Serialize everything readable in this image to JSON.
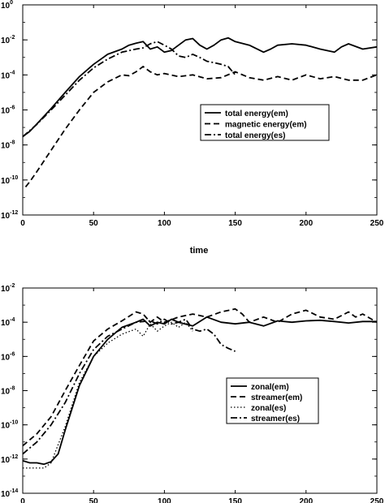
{
  "chart_data": [
    {
      "type": "line",
      "xlabel": "time",
      "yscale": "log",
      "xlim": [
        0,
        250
      ],
      "ylim": [
        1e-12,
        1
      ],
      "x_ticks": [
        "0",
        "50",
        "100",
        "150",
        "200",
        "250"
      ],
      "y_ticks": [
        {
          "value": 1.0,
          "base": "10",
          "exp": "0"
        },
        {
          "value": 0.01,
          "base": "10",
          "exp": "-2"
        },
        {
          "value": 0.0001,
          "base": "10",
          "exp": "-4"
        },
        {
          "value": 1e-06,
          "base": "10",
          "exp": "-6"
        },
        {
          "value": 1e-08,
          "base": "10",
          "exp": "-8"
        },
        {
          "value": 1e-10,
          "base": "10",
          "exp": "-10"
        },
        {
          "value": 1e-12,
          "base": "10",
          "exp": "-12"
        }
      ],
      "legend_position": "right",
      "series": [
        {
          "name": "total energy(em)",
          "style": "solid",
          "x": [
            0,
            5,
            10,
            20,
            30,
            40,
            50,
            60,
            70,
            75,
            80,
            85,
            90,
            95,
            100,
            105,
            110,
            115,
            120,
            125,
            130,
            135,
            140,
            145,
            150,
            160,
            170,
            175,
            180,
            190,
            200,
            210,
            220,
            225,
            230,
            240,
            250
          ],
          "y": [
            3e-08,
            6e-08,
            1.6e-07,
            1.2e-06,
            1e-05,
            8e-05,
            0.0004,
            0.0015,
            0.003,
            0.005,
            0.0065,
            0.008,
            0.003,
            0.004,
            0.002,
            0.0025,
            0.005,
            0.01,
            0.012,
            0.005,
            0.003,
            0.005,
            0.01,
            0.013,
            0.008,
            0.005,
            0.002,
            0.003,
            0.005,
            0.006,
            0.005,
            0.003,
            0.002,
            0.004,
            0.006,
            0.003,
            0.004
          ]
        },
        {
          "name": "magnetic energy(em)",
          "style": "dashed",
          "x": [
            2,
            5,
            10,
            20,
            30,
            40,
            50,
            60,
            70,
            75,
            80,
            85,
            90,
            95,
            100,
            110,
            120,
            130,
            140,
            150,
            160,
            170,
            180,
            190,
            200,
            210,
            220,
            230,
            240,
            250
          ],
          "y": [
            4e-11,
            8e-11,
            3e-10,
            5e-09,
            8e-08,
            1e-06,
            1e-05,
            4e-05,
            0.0001,
            9e-05,
            0.00015,
            0.0003,
            0.00015,
            0.0001,
            0.00012,
            8e-05,
            0.0001,
            6e-05,
            7e-05,
            0.00015,
            7e-05,
            5e-05,
            8e-05,
            5e-05,
            0.0001,
            6e-05,
            8e-05,
            5e-05,
            5e-05,
            0.0001
          ]
        },
        {
          "name": "total energy(es)",
          "style": "dashdot",
          "x": [
            0,
            10,
            20,
            30,
            40,
            50,
            60,
            70,
            80,
            85,
            90,
            95,
            100,
            105,
            110,
            115,
            120,
            125,
            130,
            135,
            140,
            145,
            150
          ],
          "y": [
            3e-08,
            1.5e-07,
            1e-06,
            7e-06,
            5e-05,
            0.00025,
            0.0008,
            0.002,
            0.003,
            0.0035,
            0.006,
            0.008,
            0.005,
            0.003,
            0.0012,
            0.001,
            0.0015,
            0.001,
            0.0006,
            0.0005,
            0.0004,
            0.0003,
            0.0001
          ]
        }
      ]
    },
    {
      "type": "line",
      "yscale": "log",
      "xlim": [
        0,
        250
      ],
      "ylim": [
        1e-14,
        0.01
      ],
      "x_ticks": [
        "0",
        "50",
        "100",
        "150",
        "200",
        "250"
      ],
      "y_ticks": [
        {
          "value": 0.01,
          "base": "10",
          "exp": "-2"
        },
        {
          "value": 0.0001,
          "base": "10",
          "exp": "-4"
        },
        {
          "value": 1e-06,
          "base": "10",
          "exp": "-6"
        },
        {
          "value": 1e-08,
          "base": "10",
          "exp": "-8"
        },
        {
          "value": 1e-10,
          "base": "10",
          "exp": "-10"
        },
        {
          "value": 1e-12,
          "base": "10",
          "exp": "-12"
        },
        {
          "value": 1e-14,
          "base": "10",
          "exp": "-14"
        }
      ],
      "legend_position": "bottom-right",
      "series": [
        {
          "name": "zonal(em)",
          "style": "solid",
          "x": [
            0,
            5,
            10,
            15,
            20,
            25,
            30,
            40,
            50,
            60,
            70,
            80,
            85,
            90,
            95,
            100,
            105,
            110,
            120,
            130,
            140,
            150,
            160,
            170,
            180,
            190,
            200,
            210,
            220,
            230,
            240,
            250
          ],
          "y": [
            8e-13,
            6e-13,
            6e-13,
            5e-13,
            7e-13,
            2e-12,
            5e-11,
            2e-08,
            1e-06,
            1e-05,
            5e-05,
            0.0001,
            0.00015,
            6e-05,
            0.0001,
            8e-05,
            0.00015,
            0.0001,
            6e-05,
            0.0002,
            0.0001,
            8e-05,
            0.0001,
            6e-05,
            0.00012,
            0.0001,
            0.00012,
            0.00013,
            0.00011,
            9e-05,
            0.00011,
            0.00011
          ]
        },
        {
          "name": "streamer(em)",
          "style": "dashed",
          "x": [
            0,
            10,
            20,
            30,
            40,
            50,
            60,
            70,
            80,
            85,
            90,
            95,
            100,
            110,
            120,
            130,
            140,
            150,
            155,
            160,
            170,
            180,
            190,
            200,
            210,
            220,
            230,
            235,
            240,
            250
          ],
          "y": [
            6e-12,
            3e-11,
            3e-10,
            1e-08,
            3e-07,
            8e-06,
            4e-05,
            0.00012,
            0.0004,
            0.0003,
            0.0001,
            0.0002,
            0.0001,
            0.0002,
            0.0003,
            0.0002,
            0.0004,
            0.0006,
            0.0003,
            0.0001,
            0.0002,
            0.0001,
            0.0003,
            0.0005,
            0.0002,
            0.00015,
            0.0004,
            0.0002,
            0.0003,
            0.0001
          ]
        },
        {
          "name": "zonal(es)",
          "style": "dotted",
          "x": [
            0,
            5,
            10,
            15,
            20,
            30,
            40,
            50,
            60,
            70,
            80,
            85,
            90,
            95,
            100,
            105,
            110,
            115,
            120
          ],
          "y": [
            3e-13,
            3e-13,
            3e-13,
            3e-13,
            6e-13,
            8e-11,
            3e-08,
            1e-06,
            6e-06,
            2e-05,
            4e-05,
            1.5e-05,
            8e-05,
            3e-05,
            6e-05,
            0.0001,
            5e-05,
            0.0001,
            3e-05
          ]
        },
        {
          "name": "streamer(es)",
          "style": "dashdot",
          "x": [
            0,
            10,
            20,
            30,
            40,
            50,
            60,
            70,
            80,
            90,
            95,
            100,
            105,
            110,
            115,
            120,
            125,
            130,
            135,
            140,
            145,
            150
          ],
          "y": [
            2e-12,
            1e-11,
            1e-10,
            2e-09,
            1e-07,
            2.5e-06,
            1.5e-05,
            4e-05,
            0.0001,
            0.00012,
            8e-05,
            0.00015,
            8e-05,
            0.0001,
            0.00015,
            4e-05,
            3e-05,
            4e-05,
            2e-05,
            5e-06,
            3e-06,
            2e-06
          ]
        }
      ]
    }
  ]
}
